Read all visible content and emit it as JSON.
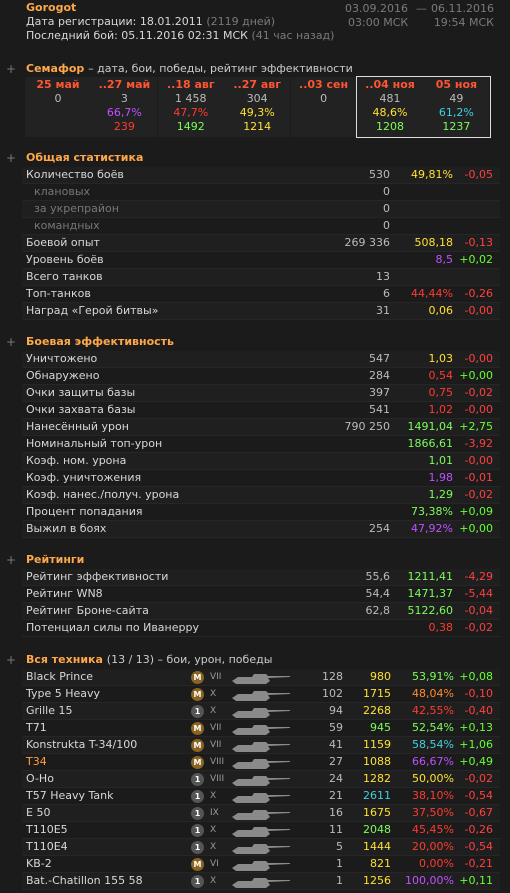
{
  "header": {
    "name": "Gorogot",
    "reg_label": "Дата регистрации: 18.01.2011",
    "reg_days": "(2119 дней)",
    "last_label": "Последний бой: 05.11.2016 02:31 МСК",
    "last_ago": "(41 час назад)",
    "period_start": "03.09.2016",
    "period_sep": "—",
    "period_end": "06.11.2016",
    "time_start": "03:00 МСК",
    "time_end": "19:54 МСК"
  },
  "semafor": {
    "title": "Семафор",
    "subtitle": "– дата, бои, победы, рейтинг эффективности",
    "columns": [
      {
        "date": "25 май",
        "battles": "0"
      },
      {
        "date": "..27 май",
        "battles": "3",
        "wins": "66,7%",
        "wins_color": "#c050ff",
        "rating": "239",
        "rating_color": "#ff3b30"
      },
      {
        "date": "..18 авг",
        "battles": "1 458",
        "wins": "47,7%",
        "wins_color": "#ff3b30",
        "rating": "1492",
        "rating_color": "#7cfc5a"
      },
      {
        "date": "..27 авг",
        "battles": "304",
        "wins": "49,3%",
        "wins_color": "#ffe033",
        "rating": "1214",
        "rating_color": "#ffe033"
      },
      {
        "date": "..03 сен",
        "battles": "0"
      },
      {
        "date": "..04 ноя",
        "battles": "481",
        "wins": "48,6%",
        "wins_color": "#ffe033",
        "rating": "1208",
        "rating_color": "#7cfc5a",
        "highlight": true
      },
      {
        "date": "05 ноя",
        "battles": "49",
        "wins": "61,2%",
        "wins_color": "#40d0e0",
        "rating": "1237",
        "rating_color": "#7cfc5a",
        "highlight": true
      }
    ]
  },
  "sections": [
    {
      "title": "Общая статистика",
      "rows": [
        {
          "label": "Количество боёв",
          "count": "530",
          "value": "49,81%",
          "color": "#ffe033",
          "delta": "-0,05",
          "sub": [
            {
              "label": "клановых",
              "count": "0"
            },
            {
              "label": "за укрепрайон",
              "count": "0"
            },
            {
              "label": "командных",
              "count": "0"
            }
          ]
        },
        {
          "label": "Боевой опыт",
          "count": "269 336",
          "value": "508,18",
          "color": "#ffe033",
          "delta": "-0,13"
        },
        {
          "label": "Уровень боёв",
          "value": "8,5",
          "color": "#c050ff",
          "delta": "+0,02"
        },
        {
          "label": "Всего танков",
          "count": "13"
        },
        {
          "label": "Топ-танков",
          "count": "6",
          "value": "44,44%",
          "color": "#ff3b30",
          "delta": "-0,26"
        },
        {
          "label": "Наград «Герой битвы»",
          "count": "31",
          "value": "0,06",
          "color": "#ffe033",
          "delta": "-0,00"
        }
      ]
    },
    {
      "title": "Боевая эффективность",
      "rows": [
        {
          "label": "Уничтожено",
          "count": "547",
          "value": "1,03",
          "color": "#ffe033",
          "delta": "-0,00"
        },
        {
          "label": "Обнаружено",
          "count": "284",
          "value": "0,54",
          "color": "#ff3b30",
          "delta": "+0,00"
        },
        {
          "label": "Очки защиты базы",
          "count": "397",
          "value": "0,75",
          "color": "#ff3b30",
          "delta": "-0,02"
        },
        {
          "label": "Очки захвата базы",
          "count": "541",
          "value": "1,02",
          "color": "#ff3b30",
          "delta": "-0,00"
        },
        {
          "label": "Нанесённый урон",
          "count": "790 250",
          "value": "1491,04",
          "color": "#7cfc5a",
          "delta": "+2,75"
        },
        {
          "label": "Номинальный топ-урон",
          "value": "1866,61",
          "color": "#7cfc5a",
          "delta": "-3,92"
        },
        {
          "label": "Коэф. ном. урона",
          "value": "1,01",
          "color": "#7cfc5a",
          "delta": "-0,00"
        },
        {
          "label": "Коэф. уничтожения",
          "value": "1,98",
          "color": "#c050ff",
          "delta": "-0,01"
        },
        {
          "label": "Коэф. нанес./получ. урона",
          "value": "1,29",
          "color": "#7cfc5a",
          "delta": "-0,02"
        },
        {
          "label": "Процент попадания",
          "value": "73,38%",
          "color": "#7cfc5a",
          "delta": "+0,09"
        },
        {
          "label": "Выжил в боях",
          "count": "254",
          "value": "47,92%",
          "color": "#c050ff",
          "delta": "+0,00"
        }
      ]
    },
    {
      "title": "Рейтинги",
      "rows": [
        {
          "label": "Рейтинг эффективности",
          "count": "55,6",
          "value": "1211,41",
          "color": "#7cfc5a",
          "delta": "-4,29"
        },
        {
          "label": "Рейтинг WN8",
          "count": "54,4",
          "value": "1471,37",
          "color": "#7cfc5a",
          "delta": "-5,44"
        },
        {
          "label": "Рейтинг Броне-сайта",
          "count": "62,8",
          "value": "5122,60",
          "color": "#7cfc5a",
          "delta": "-0,04"
        },
        {
          "label": "Потенциал силы по Иванерру",
          "value": "0,38",
          "color": "#ff3b30",
          "delta": "-0,02"
        }
      ]
    }
  ],
  "vehicles": {
    "title": "Вся техника",
    "subtitle": "(13 / 13) – бои, урон, победы",
    "rows": [
      {
        "name": "Black Prince",
        "badge": "M",
        "tier": "VII",
        "battles": "128",
        "damage": "980",
        "damage_color": "#ffe033",
        "wins": "53,91%",
        "wins_color": "#7cfc5a",
        "delta": "+0,08"
      },
      {
        "name": "Type 5 Heavy",
        "badge": "M",
        "tier": "X",
        "battles": "102",
        "damage": "1715",
        "damage_color": "#ffe033",
        "wins": "48,04%",
        "wins_color": "#ff8a30",
        "delta": "-0,10"
      },
      {
        "name": "Grille 15",
        "badge": "1",
        "tier": "X",
        "battles": "94",
        "damage": "2268",
        "damage_color": "#ffe033",
        "wins": "42,55%",
        "wins_color": "#ff3b30",
        "delta": "-0,40"
      },
      {
        "name": "T71",
        "badge": "M",
        "tier": "VII",
        "battles": "59",
        "damage": "945",
        "damage_color": "#7cfc5a",
        "wins": "52,54%",
        "wins_color": "#7cfc5a",
        "delta": "+0,13"
      },
      {
        "name": "Konstrukta T-34/100",
        "badge": "M",
        "tier": "VII",
        "battles": "41",
        "damage": "1159",
        "damage_color": "#ffe033",
        "wins": "58,54%",
        "wins_color": "#40d0e0",
        "delta": "+1,06"
      },
      {
        "name": "T34",
        "name_color": "#ff9f40",
        "badge": "M",
        "tier": "VIII",
        "battles": "27",
        "damage": "1088",
        "damage_color": "#ffe033",
        "wins": "66,67%",
        "wins_color": "#c050ff",
        "delta": "+0,49"
      },
      {
        "name": "O-Ho",
        "badge": "1",
        "tier": "VIII",
        "battles": "24",
        "damage": "1282",
        "damage_color": "#ffe033",
        "wins": "50,00%",
        "wins_color": "#ffe033",
        "delta": "-0,02"
      },
      {
        "name": "T57 Heavy Tank",
        "badge": "1",
        "tier": "X",
        "battles": "21",
        "damage": "2611",
        "damage_color": "#40d0e0",
        "wins": "38,10%",
        "wins_color": "#ff3b30",
        "delta": "-0,54"
      },
      {
        "name": "E 50",
        "badge": "1",
        "tier": "IX",
        "battles": "16",
        "damage": "1675",
        "damage_color": "#ffe033",
        "wins": "37,50%",
        "wins_color": "#ff3b30",
        "delta": "-0,67"
      },
      {
        "name": "T110E5",
        "badge": "1",
        "tier": "X",
        "battles": "11",
        "damage": "2048",
        "damage_color": "#7cfc5a",
        "wins": "45,45%",
        "wins_color": "#ff3b30",
        "delta": "-0,26"
      },
      {
        "name": "T110E4",
        "badge": "1",
        "tier": "X",
        "battles": "5",
        "damage": "1444",
        "damage_color": "#ffe033",
        "wins": "20,00%",
        "wins_color": "#ff3b30",
        "delta": "-0,54"
      },
      {
        "name": "KB-2",
        "badge": "M",
        "tier": "VI",
        "battles": "1",
        "damage": "821",
        "damage_color": "#ffe033",
        "wins": "0,00%",
        "wins_color": "#ff3b30",
        "delta": "-0,21"
      },
      {
        "name": "Bat.-Chatillon 155 58",
        "badge": "1",
        "tier": "X",
        "battles": "1",
        "damage": "1256",
        "damage_color": "#ffe033",
        "wins": "100,00%",
        "wins_color": "#c050ff",
        "delta": "+0,11"
      }
    ]
  }
}
